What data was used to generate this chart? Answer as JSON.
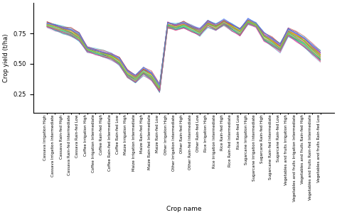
{
  "categories": [
    "Cassava Irrigation High",
    "Cassava Irrigation Intermediate",
    "Cassava Rain-fed High",
    "Cassava Rain-fed Intermediate",
    "Cassava Rain-fed Low",
    "Coffee Irrigation High",
    "Coffee Irrigation Intermediate",
    "Coffee Rain-fed High",
    "Coffee Rain-fed Intermediate",
    "Coffee Rain-fed Low",
    "Maize Irrigation High",
    "Maize Irrigation Intermediate",
    "Maize Rain-fed High",
    "Maize Rain-fed Intermediate",
    "Maize Rain-fed Low",
    "Other Irrigation High",
    "Other Irrigation Intermediate",
    "Other Rain-fed High",
    "Other Rain-fed Intermediate",
    "Other Rain-fed Low",
    "Rice Irrigation High",
    "Rice Irrigation Intermediate",
    "Rice Rain-fed High",
    "Rice Rain-fed Intermediate",
    "Rice Rain-fed Low",
    "Sugarcane Irrigation High",
    "Sugarcane Irrigation Intermediate",
    "Sugarcane Rain-fed High",
    "Sugarcane Rain-fed Intermediate",
    "Sugarcane Rain-fed Low",
    "Vegetables and fruits Irrigation High",
    "Vegetables and fruits Irrigation Intermediate",
    "Vegetables and fruits Rain-fed High",
    "Vegetables and fruits Rain-fed Intermediate",
    "Vegetables and fruits Rain-fed Low"
  ],
  "ylabel": "Crop yield (t/ha)",
  "xlabel": "Crop name",
  "ylim": [
    0.1,
    1.0
  ],
  "yticks": [
    0.25,
    0.5,
    0.75
  ],
  "n_lines": 50,
  "background_color": "#ffffff",
  "line_alpha": 0.6,
  "line_width": 0.6,
  "group_means": [
    0.82,
    0.8,
    0.78,
    0.76,
    0.72,
    0.62,
    0.6,
    0.58,
    0.56,
    0.52,
    0.42,
    0.38,
    0.44,
    0.4,
    0.3,
    0.82,
    0.8,
    0.82,
    0.79,
    0.76,
    0.83,
    0.8,
    0.84,
    0.8,
    0.76,
    0.85,
    0.82,
    0.72,
    0.68,
    0.63,
    0.76,
    0.72,
    0.68,
    0.62,
    0.56
  ],
  "group_spreads": [
    0.04,
    0.05,
    0.06,
    0.06,
    0.07,
    0.04,
    0.04,
    0.05,
    0.05,
    0.06,
    0.06,
    0.07,
    0.06,
    0.07,
    0.07,
    0.05,
    0.05,
    0.05,
    0.05,
    0.06,
    0.05,
    0.05,
    0.05,
    0.06,
    0.06,
    0.04,
    0.04,
    0.07,
    0.07,
    0.07,
    0.07,
    0.08,
    0.08,
    0.09,
    0.09
  ],
  "colors": [
    "#e6194b",
    "#3cb44b",
    "#ffe119",
    "#4363d8",
    "#f58231",
    "#911eb4",
    "#42d4f4",
    "#f032e6",
    "#bfef45",
    "#aaaaaa",
    "#469990",
    "#dcbeff",
    "#9A6324",
    "#cccc00",
    "#800000",
    "#aaffc3",
    "#808000",
    "#ffd8b1",
    "#000075",
    "#808080",
    "#ff4500",
    "#00ced1",
    "#da70d6",
    "#7cfc00",
    "#dc143c",
    "#00bfff",
    "#ff69b4",
    "#adff2f",
    "#8b0000",
    "#20b2aa",
    "#ff8c00",
    "#6495ed",
    "#90ee90",
    "#dda0dd",
    "#cd853f",
    "#40e0d0",
    "#ee82ee",
    "#f0e68c",
    "#b22222",
    "#5f9ea0",
    "#7b68ee",
    "#00fa9a",
    "#ffa500",
    "#6a5acd",
    "#98fb98",
    "#ff6347",
    "#4682b4",
    "#32cd32",
    "#ff1493",
    "#1e90ff"
  ]
}
